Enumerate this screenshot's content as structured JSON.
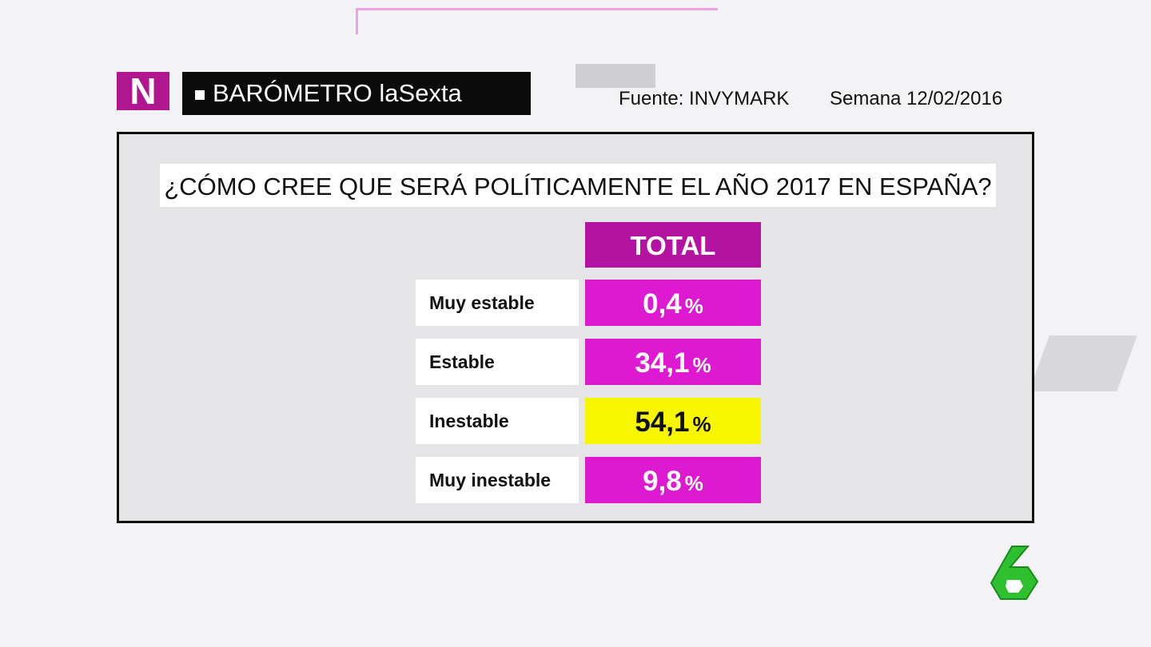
{
  "header": {
    "logo": "N",
    "title": "BARÓMETRO laSexta",
    "source": "Fuente: INVYMARK",
    "week": "Semana 12/02/2016"
  },
  "question": "¿CÓMO CREE QUE SERÁ POLÍTICAMENTE EL AÑO 2017 EN ESPAÑA?",
  "table": {
    "column": "TOTAL",
    "rows": [
      {
        "label": "Muy estable",
        "value": "0,4",
        "unit": "%",
        "color": "#dd1ad2",
        "text_color": "#ffffff"
      },
      {
        "label": "Estable",
        "value": "34,1",
        "unit": "%",
        "color": "#dd1ad2",
        "text_color": "#ffffff"
      },
      {
        "label": "Inestable",
        "value": "54,1",
        "unit": "%",
        "color": "#f6f600",
        "text_color": "#111111"
      },
      {
        "label": "Muy inestable",
        "value": "9,8",
        "unit": "%",
        "color": "#dd1ad2",
        "text_color": "#ffffff"
      }
    ]
  }
}
